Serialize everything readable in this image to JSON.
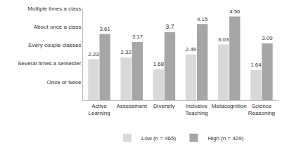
{
  "chart_data": {
    "type": "bar",
    "categories": [
      "Active Learning",
      "Assessment",
      "Diversity",
      "Inclusive Teaching",
      "Metacognition",
      "Science Reasoning"
    ],
    "series": [
      {
        "name": "Low (n = 465)",
        "color": "#d9d9d9",
        "values": [
          2.23,
          2.32,
          1.68,
          2.49,
          3.03,
          1.64
        ]
      },
      {
        "name": "High (n = 429)",
        "color": "#a6a6a6",
        "values": [
          3.61,
          3.17,
          3.7,
          4.15,
          4.56,
          3.09
        ]
      }
    ],
    "ylim": [
      0,
      5
    ],
    "yticks": [
      {
        "value": 1,
        "label": "Once or twice"
      },
      {
        "value": 2,
        "label": "Several times a semester"
      },
      {
        "value": 3,
        "label": "Every couple classes"
      },
      {
        "value": 4,
        "label": "About once a class"
      },
      {
        "value": 5,
        "label": "Multiple times a class"
      }
    ],
    "grid": false,
    "legend": "bottom",
    "data_labels": true
  }
}
